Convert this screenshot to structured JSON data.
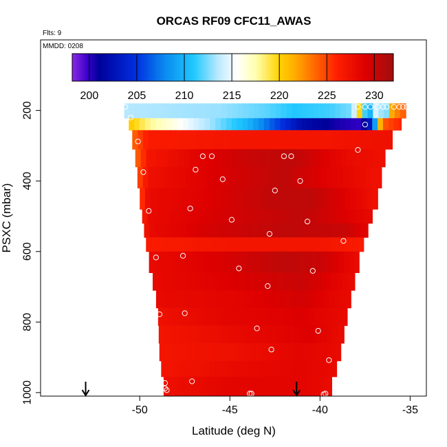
{
  "chart_data": {
    "type": "heatmap",
    "title": "ORCAS RF09 CFC11_AWAS",
    "flts_label": "Flts: 9",
    "mmdd_label": "MMDD: 0208",
    "xlabel": "Latitude (deg N)",
    "ylabel": "PSXC (mbar)",
    "xlim": [
      -55.5,
      -34.1
    ],
    "ylim": [
      1010,
      0
    ],
    "xticks": [
      -50,
      -45,
      -40,
      -35
    ],
    "yticks": [
      200,
      400,
      600,
      800,
      1000
    ],
    "colorbar": {
      "range": [
        198.2,
        232.0
      ],
      "ticks": [
        200,
        205,
        210,
        215,
        220,
        225,
        230
      ],
      "stops": [
        {
          "v": 198.2,
          "c": "#8b2be2"
        },
        {
          "v": 199.8,
          "c": "#3a00cc"
        },
        {
          "v": 201.0,
          "c": "#00009a"
        },
        {
          "v": 205.0,
          "c": "#0030e0"
        },
        {
          "v": 208.0,
          "c": "#0a8cf0"
        },
        {
          "v": 211.0,
          "c": "#20c8ff"
        },
        {
          "v": 213.5,
          "c": "#b8e8ff"
        },
        {
          "v": 215.5,
          "c": "#ffffff"
        },
        {
          "v": 217.5,
          "c": "#ffffb0"
        },
        {
          "v": 220.0,
          "c": "#ffd200"
        },
        {
          "v": 221.5,
          "c": "#ffb000"
        },
        {
          "v": 224.0,
          "c": "#ff6000"
        },
        {
          "v": 226.0,
          "c": "#ff2000"
        },
        {
          "v": 229.0,
          "c": "#dd0000"
        },
        {
          "v": 232.0,
          "c": "#a01010"
        }
      ]
    },
    "arrows_latitude": [
      -53.0,
      -41.3
    ],
    "domain_edges": [
      {
        "p": 180,
        "west": -51.0,
        "east": -35.1
      },
      {
        "p": 240,
        "west": -50.6,
        "east": -35.5
      },
      {
        "p": 310,
        "west": -50.3,
        "east": -36.3
      },
      {
        "p": 450,
        "west": -50.0,
        "east": -36.8
      },
      {
        "p": 600,
        "west": -49.6,
        "east": -37.7
      },
      {
        "p": 760,
        "west": -49.0,
        "east": -38.4
      },
      {
        "p": 900,
        "west": -48.9,
        "east": -38.9
      },
      {
        "p": 1010,
        "west": -48.6,
        "east": -39.5
      }
    ],
    "layers": [
      {
        "p0": 180,
        "p1": 222,
        "profile": [
          [
            -51.0,
            213.5
          ],
          [
            -45.5,
            213
          ],
          [
            -43.0,
            212
          ],
          [
            -41.5,
            211
          ],
          [
            -39.5,
            211.5
          ],
          [
            -38.2,
            212.5
          ],
          [
            -37.8,
            220
          ],
          [
            -37.6,
            212
          ],
          [
            -37.2,
            210
          ],
          [
            -36.8,
            216
          ],
          [
            -36.4,
            210
          ],
          [
            -36.0,
            222
          ],
          [
            -35.1,
            225
          ]
        ]
      },
      {
        "p0": 222,
        "p1": 256,
        "profile": [
          [
            -51.0,
            221.5
          ],
          [
            -49.5,
            218
          ],
          [
            -48.0,
            216
          ],
          [
            -46.0,
            213
          ],
          [
            -44.0,
            210
          ],
          [
            -42.5,
            206
          ],
          [
            -41.0,
            202
          ],
          [
            -39.0,
            200.5
          ],
          [
            -37.8,
            200
          ],
          [
            -37.3,
            202
          ],
          [
            -36.9,
            210
          ],
          [
            -36.6,
            224
          ],
          [
            -35.5,
            226
          ]
        ]
      },
      {
        "p0": 256,
        "p1": 310,
        "profile": [
          [
            -51.0,
            222
          ],
          [
            -49.5,
            226.5
          ],
          [
            -45.0,
            227
          ],
          [
            -40.0,
            227
          ],
          [
            -36.3,
            227.5
          ]
        ]
      },
      {
        "p0": 310,
        "p1": 360,
        "profile": [
          [
            -51.0,
            220
          ],
          [
            -49.5,
            227
          ],
          [
            -47.0,
            228.5
          ],
          [
            -44.0,
            230
          ],
          [
            -41.5,
            230.5
          ],
          [
            -38.5,
            228
          ],
          [
            -36.5,
            227.5
          ]
        ]
      },
      {
        "p0": 360,
        "p1": 420,
        "profile": [
          [
            -51.0,
            220
          ],
          [
            -49.5,
            227.5
          ],
          [
            -46.0,
            229
          ],
          [
            -42.0,
            230.5
          ],
          [
            -40.0,
            229
          ],
          [
            -37.0,
            227.5
          ]
        ]
      },
      {
        "p0": 420,
        "p1": 480,
        "profile": [
          [
            -51.0,
            218.5
          ],
          [
            -49.5,
            228
          ],
          [
            -46.0,
            229
          ],
          [
            -42.5,
            230.5
          ],
          [
            -40.5,
            230.5
          ],
          [
            -37.0,
            227.5
          ]
        ]
      },
      {
        "p0": 480,
        "p1": 520,
        "profile": [
          [
            -51.0,
            220
          ],
          [
            -49.5,
            228
          ],
          [
            -45.0,
            229.5
          ],
          [
            -41.0,
            230.5
          ],
          [
            -37.0,
            228
          ]
        ]
      },
      {
        "p0": 520,
        "p1": 560,
        "profile": [
          [
            -51.0,
            221
          ],
          [
            -49.5,
            228
          ],
          [
            -46.0,
            229.5
          ],
          [
            -42.0,
            230.5
          ],
          [
            -38.5,
            230
          ],
          [
            -37.0,
            228
          ]
        ]
      },
      {
        "p0": 560,
        "p1": 600,
        "profile": [
          [
            -51.0,
            222
          ],
          [
            -49.5,
            226.5
          ],
          [
            -45.0,
            227
          ],
          [
            -40.0,
            227
          ],
          [
            -37.7,
            226.5
          ]
        ]
      },
      {
        "p0": 600,
        "p1": 660,
        "profile": [
          [
            -51.0,
            223
          ],
          [
            -49.5,
            228
          ],
          [
            -46.0,
            229
          ],
          [
            -42.0,
            230.5
          ],
          [
            -40.0,
            230
          ],
          [
            -38.0,
            228
          ]
        ]
      },
      {
        "p0": 660,
        "p1": 710,
        "profile": [
          [
            -51.0,
            224.5
          ],
          [
            -49.5,
            228
          ],
          [
            -45.0,
            229
          ],
          [
            -41.0,
            230
          ],
          [
            -38.2,
            228
          ]
        ]
      },
      {
        "p0": 710,
        "p1": 760,
        "profile": [
          [
            -51.0,
            225
          ],
          [
            -49.5,
            228
          ],
          [
            -45.0,
            228.5
          ],
          [
            -41.0,
            229.5
          ],
          [
            -38.4,
            228
          ]
        ]
      },
      {
        "p0": 760,
        "p1": 810,
        "profile": [
          [
            -51.0,
            225
          ],
          [
            -49.0,
            227.5
          ],
          [
            -45.0,
            228.5
          ],
          [
            -41.0,
            229
          ],
          [
            -38.5,
            228
          ]
        ]
      },
      {
        "p0": 810,
        "p1": 860,
        "profile": [
          [
            -51.0,
            225.5
          ],
          [
            -49.0,
            227
          ],
          [
            -45.0,
            228
          ],
          [
            -40.5,
            229
          ],
          [
            -38.9,
            228
          ]
        ]
      },
      {
        "p0": 860,
        "p1": 910,
        "profile": [
          [
            -51.0,
            225.5
          ],
          [
            -49.0,
            227
          ],
          [
            -45.0,
            227.5
          ],
          [
            -41.0,
            228.5
          ],
          [
            -38.9,
            228
          ]
        ]
      },
      {
        "p0": 910,
        "p1": 955,
        "profile": [
          [
            -51.0,
            226
          ],
          [
            -49.0,
            227
          ],
          [
            -45.0,
            228
          ],
          [
            -41.0,
            228.5
          ],
          [
            -39.2,
            228
          ]
        ]
      },
      {
        "p0": 955,
        "p1": 1010,
        "profile": [
          [
            -51.0,
            226
          ],
          [
            -49.0,
            227.5
          ],
          [
            -45.0,
            228.5
          ],
          [
            -41.0,
            228.5
          ],
          [
            -39.5,
            228
          ]
        ]
      }
    ],
    "samples": [
      {
        "lat": -50.8,
        "p": 190
      },
      {
        "lat": -37.9,
        "p": 190
      },
      {
        "lat": -37.5,
        "p": 190
      },
      {
        "lat": -37.2,
        "p": 190
      },
      {
        "lat": -36.8,
        "p": 190
      },
      {
        "lat": -36.5,
        "p": 190
      },
      {
        "lat": -36.3,
        "p": 190
      },
      {
        "lat": -35.9,
        "p": 190
      },
      {
        "lat": -35.6,
        "p": 190
      },
      {
        "lat": -35.4,
        "p": 190
      },
      {
        "lat": -35.2,
        "p": 190
      },
      {
        "lat": -50.5,
        "p": 220
      },
      {
        "lat": -37.5,
        "p": 240
      },
      {
        "lat": -50.1,
        "p": 288
      },
      {
        "lat": -37.9,
        "p": 312
      },
      {
        "lat": -46.5,
        "p": 330
      },
      {
        "lat": -46.0,
        "p": 330
      },
      {
        "lat": -42.0,
        "p": 330
      },
      {
        "lat": -41.6,
        "p": 330
      },
      {
        "lat": -46.9,
        "p": 368
      },
      {
        "lat": -49.8,
        "p": 375
      },
      {
        "lat": -45.4,
        "p": 395
      },
      {
        "lat": -41.1,
        "p": 400
      },
      {
        "lat": -42.5,
        "p": 427
      },
      {
        "lat": -47.2,
        "p": 478
      },
      {
        "lat": -49.5,
        "p": 485
      },
      {
        "lat": -44.9,
        "p": 510
      },
      {
        "lat": -40.7,
        "p": 515
      },
      {
        "lat": -42.8,
        "p": 550
      },
      {
        "lat": -38.7,
        "p": 570
      },
      {
        "lat": -47.6,
        "p": 612
      },
      {
        "lat": -49.1,
        "p": 617
      },
      {
        "lat": -44.5,
        "p": 648
      },
      {
        "lat": -40.4,
        "p": 655
      },
      {
        "lat": -42.9,
        "p": 698
      },
      {
        "lat": -48.9,
        "p": 778
      },
      {
        "lat": -47.5,
        "p": 775
      },
      {
        "lat": -43.5,
        "p": 818
      },
      {
        "lat": -40.1,
        "p": 825
      },
      {
        "lat": -42.7,
        "p": 878
      },
      {
        "lat": -39.5,
        "p": 908
      },
      {
        "lat": -47.1,
        "p": 968
      },
      {
        "lat": -48.6,
        "p": 973
      },
      {
        "lat": -48.6,
        "p": 988
      },
      {
        "lat": -48.5,
        "p": 993
      },
      {
        "lat": -43.9,
        "p": 1003
      },
      {
        "lat": -43.8,
        "p": 1003
      },
      {
        "lat": -39.8,
        "p": 1005
      },
      {
        "lat": -39.7,
        "p": 1003
      }
    ]
  }
}
